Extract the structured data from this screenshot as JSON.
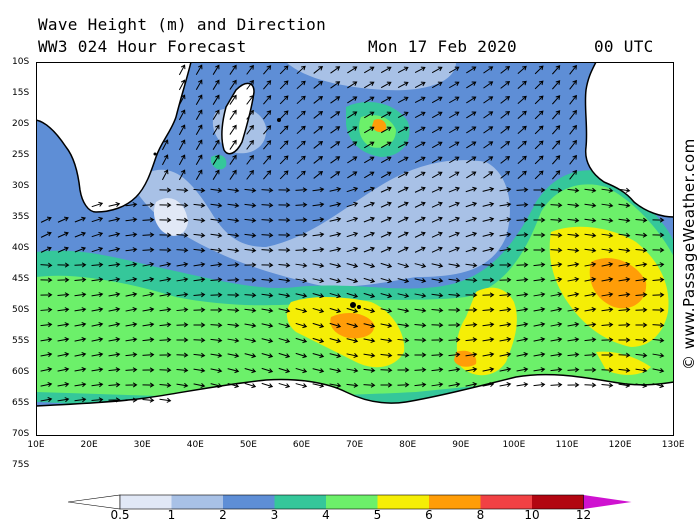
{
  "header": {
    "title": "Wave Height (m) and Direction",
    "model": "WW3 024 Hour Forecast",
    "date": "Mon 17 Feb 2020",
    "time": "00 UTC"
  },
  "credit": "© www.PassageWeather.com",
  "lat_labels": [
    "10S",
    "15S",
    "20S",
    "25S",
    "30S",
    "35S",
    "40S",
    "45S",
    "50S",
    "55S",
    "60S",
    "65S",
    "70S",
    "75S"
  ],
  "lon_labels": [
    "10E",
    "20E",
    "30E",
    "40E",
    "50E",
    "60E",
    "70E",
    "80E",
    "90E",
    "100E",
    "110E",
    "120E",
    "130E"
  ],
  "colorbar": {
    "colors": [
      "#ffffff",
      "#e1e8f6",
      "#a8c1e6",
      "#5e8ed6",
      "#35c79a",
      "#6cf06a",
      "#f5ee06",
      "#ff9d08",
      "#f14144",
      "#b20611",
      "#cf12d0"
    ],
    "labels": [
      "0.5",
      "1",
      "2",
      "3",
      "4",
      "5",
      "6",
      "8",
      "10",
      "12"
    ]
  },
  "legend_colors": {
    "land": "#ffffff",
    "coast": "#000000",
    "arrow": "#000000"
  }
}
